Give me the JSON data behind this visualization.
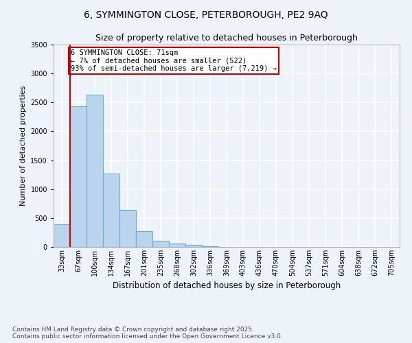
{
  "title": "6, SYMMINGTON CLOSE, PETERBOROUGH, PE2 9AQ",
  "subtitle": "Size of property relative to detached houses in Peterborough",
  "xlabel": "Distribution of detached houses by size in Peterborough",
  "ylabel": "Number of detached properties",
  "categories": [
    "33sqm",
    "67sqm",
    "100sqm",
    "134sqm",
    "167sqm",
    "201sqm",
    "235sqm",
    "268sqm",
    "302sqm",
    "336sqm",
    "369sqm",
    "403sqm",
    "436sqm",
    "470sqm",
    "504sqm",
    "537sqm",
    "571sqm",
    "604sqm",
    "638sqm",
    "672sqm",
    "705sqm"
  ],
  "bar_heights": [
    390,
    2430,
    2630,
    1270,
    640,
    270,
    110,
    60,
    30,
    15,
    5,
    2,
    0,
    0,
    0,
    0,
    0,
    0,
    0,
    0,
    0
  ],
  "bar_color": "#bad4ed",
  "bar_edge_color": "#6aaad4",
  "property_line_color": "#cc0000",
  "annotation_text": "6 SYMMINGTON CLOSE: 71sqm\n← 7% of detached houses are smaller (522)\n93% of semi-detached houses are larger (7,219) →",
  "annotation_box_color": "#cc0000",
  "ylim": [
    0,
    3500
  ],
  "yticks": [
    0,
    500,
    1000,
    1500,
    2000,
    2500,
    3000,
    3500
  ],
  "background_color": "#eef2f9",
  "plot_background": "#eef2f9",
  "grid_color": "#ffffff",
  "footer": "Contains HM Land Registry data © Crown copyright and database right 2025.\nContains public sector information licensed under the Open Government Licence v3.0.",
  "title_fontsize": 10,
  "subtitle_fontsize": 9,
  "xlabel_fontsize": 8.5,
  "ylabel_fontsize": 8,
  "tick_fontsize": 7,
  "annotation_fontsize": 7.5,
  "footer_fontsize": 6.5
}
